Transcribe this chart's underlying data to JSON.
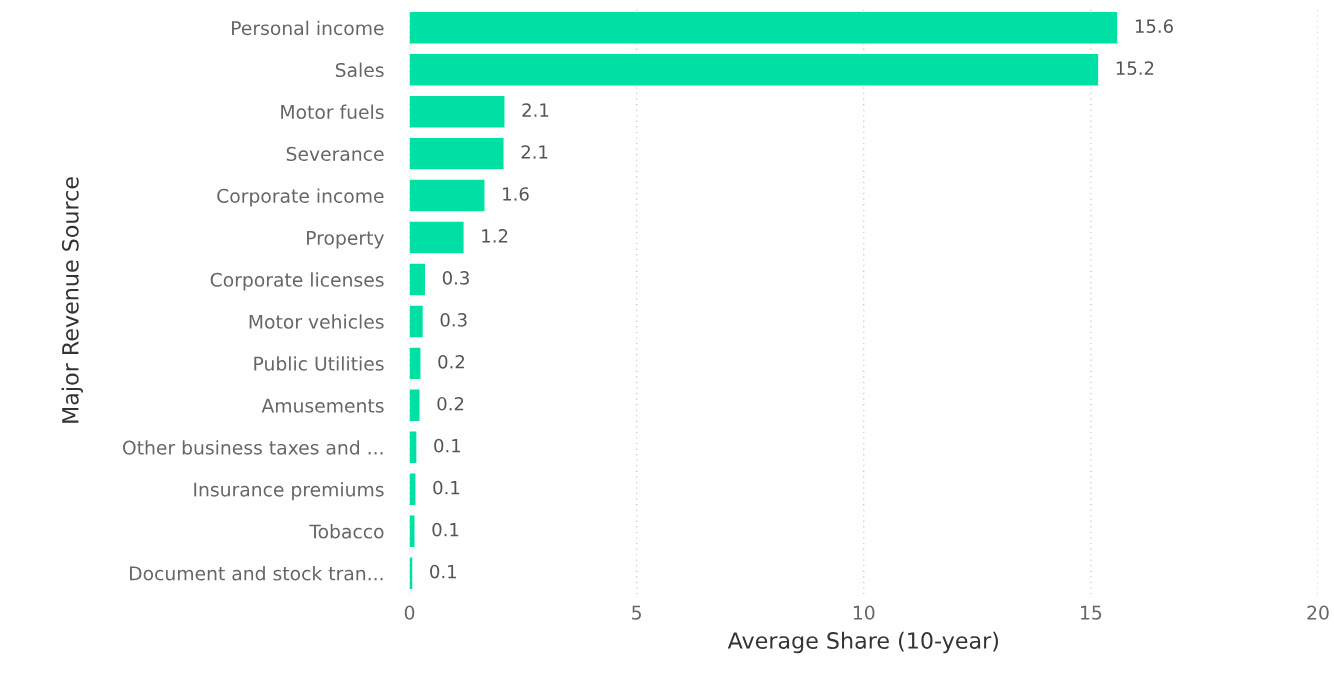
{
  "chart_data": {
    "type": "bar",
    "orientation": "horizontal",
    "xlabel": "Average Share (10-year)",
    "ylabel": "Major Revenue Source",
    "categories": [
      "Personal income",
      "Sales",
      "Motor fuels",
      "Severance",
      "Corporate income",
      "Property",
      "Corporate licenses",
      "Motor vehicles",
      "Public Utilities",
      "Amusements",
      "Other business taxes and ...",
      "Insurance premiums",
      "Tobacco",
      "Document and stock tran..."
    ],
    "values": [
      15.58,
      15.16,
      2.09,
      2.07,
      1.65,
      1.19,
      0.34,
      0.29,
      0.24,
      0.22,
      0.15,
      0.13,
      0.11,
      0.06
    ],
    "value_labels": [
      "15.6",
      "15.2",
      "2.1",
      "2.1",
      "1.6",
      "1.2",
      "0.3",
      "0.3",
      "0.2",
      "0.2",
      "0.1",
      "0.1",
      "0.1",
      "0.1"
    ],
    "color": "#01e0a4",
    "xlim": [
      0,
      20
    ],
    "xticks": [
      0,
      5,
      10,
      15,
      20
    ],
    "grid": "x"
  }
}
